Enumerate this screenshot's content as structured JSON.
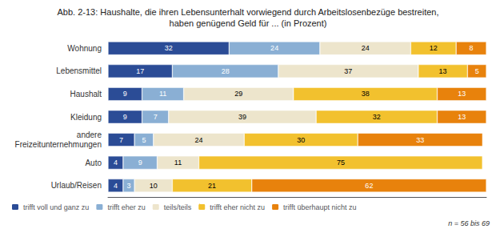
{
  "chart_data": {
    "type": "bar",
    "orientation": "horizontal",
    "stacked": true,
    "title": "Abb. 2-13: Haushalte, die ihren Lebensunterhalt vorwiegend durch Arbeitslosenbezüge bestreiten,",
    "subtitle": "haben genügend Geld für ... (in Prozent)",
    "categories": [
      "Wohnung",
      "Lebensmittel",
      "Haushalt",
      "Kleidung",
      "andere\nFreizeitunternehmungen",
      "Auto",
      "Urlaub/Reisen"
    ],
    "series": [
      {
        "name": "trifft voll und ganz zu",
        "color": "#2B4C96",
        "values": [
          32,
          17,
          9,
          9,
          7,
          4,
          4
        ]
      },
      {
        "name": "trifft eher zu",
        "color": "#8AAFD4",
        "values": [
          24,
          28,
          11,
          7,
          5,
          9,
          3
        ]
      },
      {
        "name": "teils/teils",
        "color": "#EDE5CC",
        "values": [
          24,
          37,
          29,
          39,
          24,
          11,
          10
        ]
      },
      {
        "name": "trifft eher nicht zu",
        "color": "#F2C12E",
        "values": [
          12,
          13,
          38,
          32,
          30,
          75,
          21
        ]
      },
      {
        "name": "trifft überhaupt nicht zu",
        "color": "#E8820C",
        "values": [
          8,
          5,
          13,
          13,
          33,
          0,
          62
        ]
      }
    ],
    "xlim": [
      0,
      100
    ],
    "data_labels": true,
    "tick_labels": "y",
    "grid": false,
    "legend": "lower left",
    "annotations": [
      "n = 56 bis 69"
    ]
  }
}
